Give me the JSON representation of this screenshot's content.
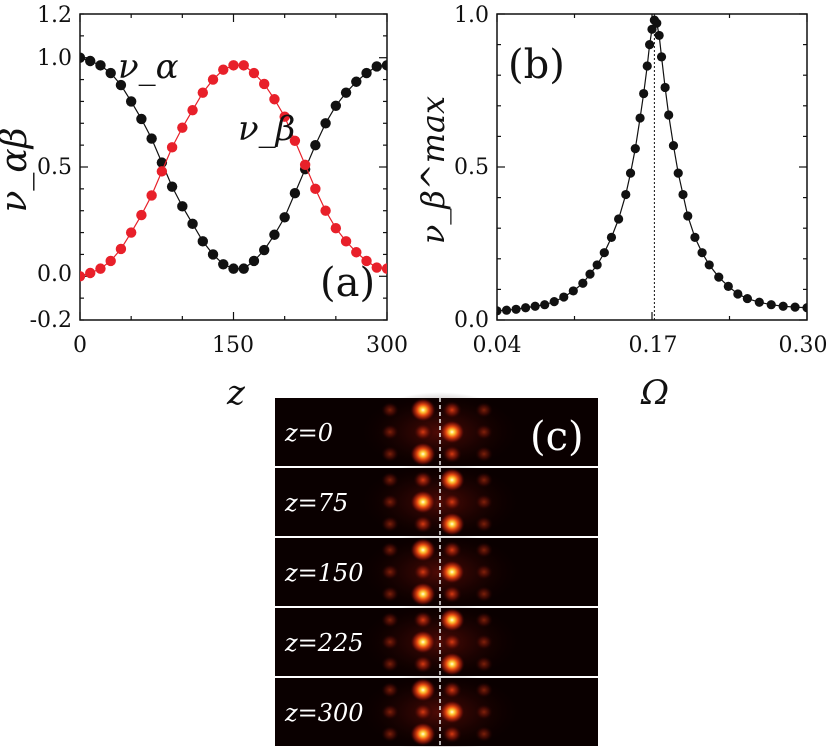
{
  "chart_data": [
    {
      "id": "a",
      "type": "line",
      "panel_label": "(a)",
      "xlabel": "z",
      "ylabel": "ν_αβ",
      "xlim": [
        0,
        300
      ],
      "ylim": [
        -0.2,
        1.2
      ],
      "xticks": [
        "0",
        "150",
        "300"
      ],
      "yticks": [
        "-0.2",
        "0.0",
        "0.5",
        "1.0",
        "1.2"
      ],
      "series": [
        {
          "name": "ν_α",
          "color": "#111111",
          "x": [
            0,
            10,
            20,
            30,
            40,
            50,
            60,
            70,
            80,
            90,
            100,
            110,
            120,
            130,
            140,
            150,
            160,
            170,
            180,
            190,
            200,
            210,
            220,
            230,
            240,
            250,
            260,
            270,
            280,
            290,
            300
          ],
          "y": [
            1.0,
            0.985,
            0.965,
            0.93,
            0.875,
            0.8,
            0.72,
            0.63,
            0.52,
            0.41,
            0.32,
            0.24,
            0.16,
            0.1,
            0.055,
            0.035,
            0.035,
            0.07,
            0.12,
            0.19,
            0.27,
            0.38,
            0.49,
            0.6,
            0.7,
            0.78,
            0.84,
            0.89,
            0.93,
            0.96,
            0.965
          ]
        },
        {
          "name": "ν_β",
          "color": "#e8202a",
          "x": [
            0,
            10,
            20,
            30,
            40,
            50,
            60,
            70,
            80,
            90,
            100,
            110,
            120,
            130,
            140,
            150,
            160,
            170,
            180,
            190,
            200,
            210,
            220,
            230,
            240,
            250,
            260,
            270,
            280,
            290,
            300
          ],
          "y": [
            0.0,
            0.015,
            0.035,
            0.07,
            0.125,
            0.2,
            0.28,
            0.37,
            0.48,
            0.59,
            0.68,
            0.76,
            0.84,
            0.9,
            0.945,
            0.965,
            0.965,
            0.93,
            0.88,
            0.81,
            0.73,
            0.62,
            0.51,
            0.4,
            0.3,
            0.22,
            0.16,
            0.11,
            0.07,
            0.04,
            0.035
          ]
        }
      ],
      "annotations": [
        "ν_α",
        "ν_β"
      ]
    },
    {
      "id": "b",
      "type": "line",
      "panel_label": "(b)",
      "xlabel": "Ω",
      "ylabel": "ν_β^max",
      "xlim": [
        0.04,
        0.3
      ],
      "ylim": [
        0.0,
        1.0
      ],
      "xticks": [
        "0.04",
        "0.17",
        "0.30"
      ],
      "yticks": [
        "0.0",
        "0.5",
        "1.0"
      ],
      "reference_line_x": 0.172,
      "series": [
        {
          "name": "ν_β^max",
          "color": "#111111",
          "x": [
            0.04,
            0.048,
            0.056,
            0.064,
            0.072,
            0.08,
            0.088,
            0.096,
            0.104,
            0.112,
            0.118,
            0.124,
            0.13,
            0.136,
            0.142,
            0.148,
            0.152,
            0.156,
            0.16,
            0.163,
            0.166,
            0.168,
            0.17,
            0.172,
            0.174,
            0.176,
            0.178,
            0.181,
            0.184,
            0.188,
            0.192,
            0.196,
            0.2,
            0.206,
            0.212,
            0.218,
            0.226,
            0.234,
            0.242,
            0.25,
            0.26,
            0.27,
            0.28,
            0.29,
            0.3
          ],
          "y": [
            0.03,
            0.032,
            0.035,
            0.04,
            0.045,
            0.05,
            0.06,
            0.075,
            0.095,
            0.12,
            0.15,
            0.18,
            0.22,
            0.27,
            0.33,
            0.41,
            0.48,
            0.56,
            0.66,
            0.74,
            0.83,
            0.9,
            0.95,
            0.98,
            0.97,
            0.93,
            0.86,
            0.76,
            0.67,
            0.57,
            0.48,
            0.41,
            0.34,
            0.27,
            0.22,
            0.18,
            0.14,
            0.11,
            0.085,
            0.07,
            0.058,
            0.05,
            0.045,
            0.042,
            0.04
          ]
        }
      ]
    },
    {
      "id": "c",
      "type": "heatmap",
      "panel_label": "(c)",
      "description_free": true,
      "rows": [
        {
          "label": "z=0"
        },
        {
          "label": "z=75"
        },
        {
          "label": "z=150"
        },
        {
          "label": "z=225"
        },
        {
          "label": "z=300"
        }
      ]
    }
  ]
}
